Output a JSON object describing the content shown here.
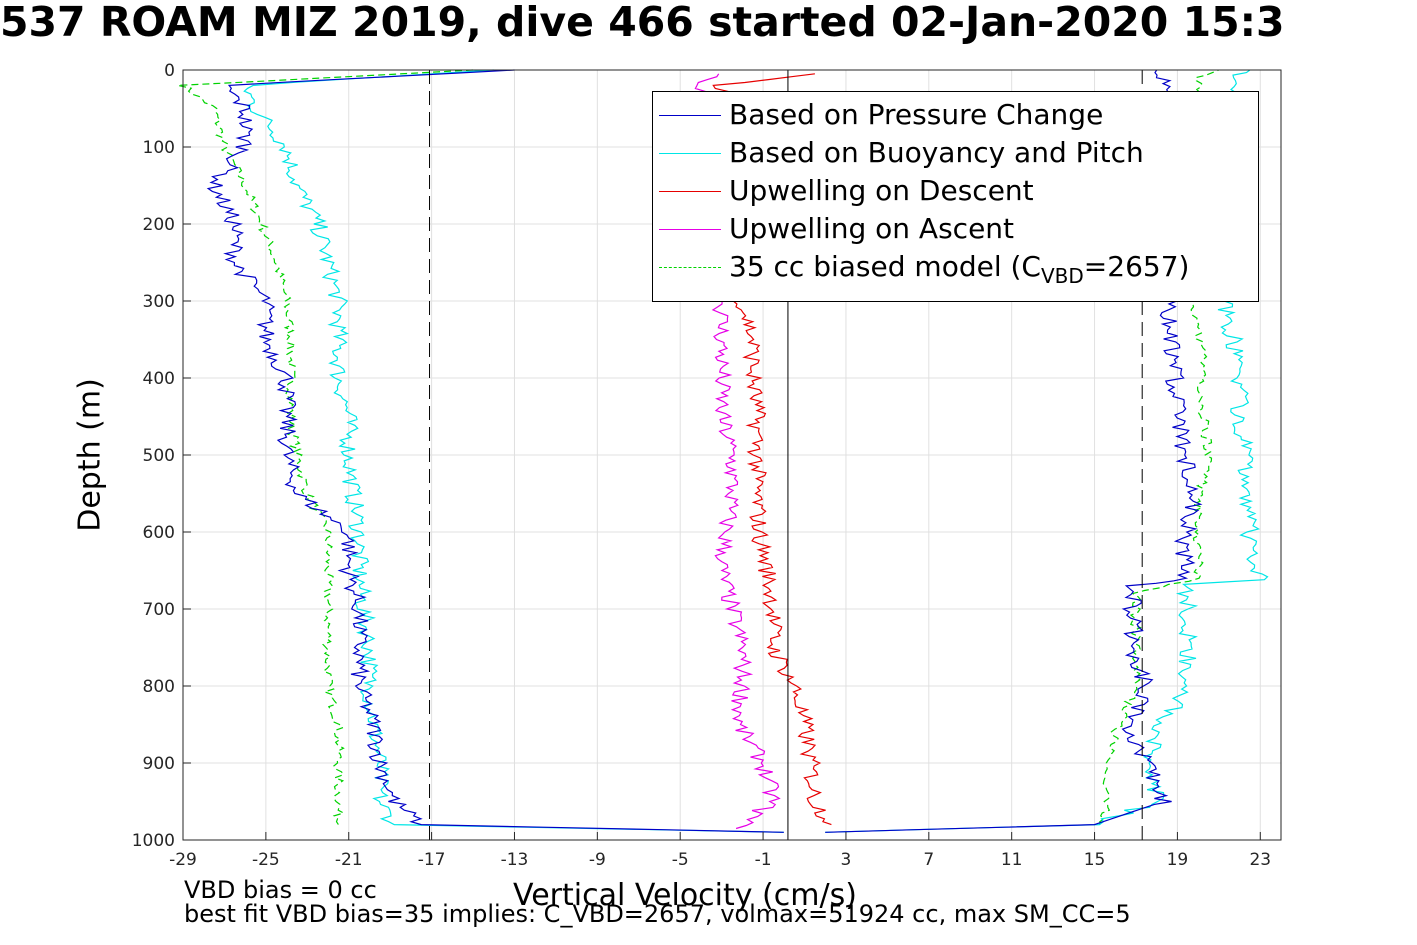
{
  "title": "537 ROAM MIZ 2019, dive 466 started 02-Jan-2020 15:3",
  "footer": {
    "line1": "VBD bias = 0 cc",
    "line2": "best fit VBD bias=35 implies: C_VBD=2657, volmax=51924 cc, max SM_CC=5"
  },
  "legend": {
    "items": [
      {
        "label": "Based on Pressure Change",
        "color": "#0000c8",
        "dash": "solid"
      },
      {
        "label": "Based on Buoyancy and Pitch",
        "color": "#00e6e6",
        "dash": "solid"
      },
      {
        "label": "Upwelling on Descent",
        "color": "#e60000",
        "dash": "solid"
      },
      {
        "label": "Upwelling on Ascent",
        "color": "#e600e6",
        "dash": "solid"
      },
      {
        "label_prefix": "35 cc biased model (C",
        "label_sub": "VBD",
        "label_suffix": "=2657)",
        "color": "#00d200",
        "dash": "dashed"
      }
    ]
  },
  "chart_data": {
    "type": "line",
    "title": "537 ROAM MIZ 2019, dive 466 started 02-Jan-2020 15:3",
    "xlabel": "Vertical Velocity (cm/s)",
    "ylabel": "Depth (m)",
    "xlim": [
      -29,
      24
    ],
    "ylim": [
      0,
      1000
    ],
    "y_reversed": true,
    "grid": true,
    "legend_position": "top-right",
    "xticks": [
      -29,
      -25,
      -21,
      -17,
      -13,
      -9,
      -5,
      -1,
      3,
      7,
      11,
      15,
      19,
      23
    ],
    "yticks": [
      0,
      100,
      200,
      300,
      400,
      500,
      600,
      700,
      800,
      900,
      1000
    ],
    "reference_lines": [
      {
        "x": -17.1,
        "style": "dashed",
        "color": "#000000"
      },
      {
        "x": 17.3,
        "style": "dashed",
        "color": "#000000"
      },
      {
        "x": 0.2,
        "style": "solid",
        "color": "#000000"
      }
    ],
    "series": [
      {
        "name": "Based on Pressure Change",
        "color": "#0000c8",
        "style": "solid",
        "depth": [
          0,
          20,
          50,
          100,
          150,
          200,
          250,
          300,
          350,
          400,
          450,
          500,
          550,
          600,
          650,
          700,
          750,
          800,
          850,
          900,
          950,
          980,
          990
        ],
        "values": [
          -13,
          -27,
          -26,
          -26,
          -27.5,
          -26.5,
          -26.5,
          -25,
          -25,
          -24,
          -24,
          -24,
          -23.5,
          -21,
          -21,
          -20.5,
          -20.5,
          -20.5,
          -19.8,
          -19.5,
          -18.8,
          -17.5,
          0
        ],
        "ascent_depth": [
          990,
          980,
          950,
          900,
          860,
          800,
          760,
          700,
          670,
          660,
          620,
          560,
          500,
          440,
          380,
          330,
          300,
          260,
          200,
          120,
          60,
          10,
          0
        ],
        "ascent_values": [
          2,
          15,
          18.3,
          17.6,
          16.5,
          17.5,
          17,
          16.8,
          16.8,
          19.5,
          19.3,
          19.8,
          19.3,
          19,
          18.8,
          18.5,
          18.8,
          18.8,
          18.8,
          18.8,
          18.5,
          18.3,
          18
        ]
      },
      {
        "name": "Based on Buoyancy and Pitch",
        "color": "#00e6e6",
        "style": "solid",
        "depth": [
          0,
          20,
          50,
          100,
          150,
          200,
          250,
          300,
          350,
          400,
          450,
          500,
          550,
          600,
          650,
          700,
          750,
          800,
          850,
          900,
          950,
          980,
          990
        ],
        "values": [
          -14,
          -26,
          -25.5,
          -24,
          -23.5,
          -22.5,
          -22,
          -21.5,
          -21.5,
          -21.5,
          -21,
          -21,
          -20.8,
          -20.5,
          -20.5,
          -20.3,
          -20,
          -20,
          -19.8,
          -19.5,
          -19.5,
          -18.8,
          0
        ],
        "ascent_depth": [
          990,
          980,
          950,
          900,
          860,
          800,
          760,
          700,
          668,
          662,
          620,
          560,
          500,
          440,
          380,
          330,
          300,
          260,
          200,
          120,
          60,
          10,
          0
        ],
        "ascent_values": [
          2,
          15,
          18,
          17.8,
          18,
          19.5,
          19.5,
          19.5,
          19.3,
          23,
          22.5,
          22.5,
          22.3,
          22,
          22,
          21.5,
          21.3,
          21.3,
          21.3,
          21.3,
          21.3,
          21.5,
          22.5
        ]
      },
      {
        "name": "Upwelling on Descent",
        "color": "#e60000",
        "style": "solid",
        "depth": [
          5,
          20,
          300,
          350,
          400,
          450,
          500,
          550,
          600,
          650,
          700,
          750,
          800,
          850,
          900,
          950,
          980
        ],
        "values": [
          1.5,
          -3,
          -2,
          -1.5,
          -1.5,
          -1.3,
          -1.3,
          -1.3,
          -1.2,
          -0.8,
          -0.5,
          -0.5,
          0.5,
          1,
          1.3,
          1.5,
          2.3
        ]
      },
      {
        "name": "Upwelling on Ascent",
        "color": "#e600e6",
        "style": "solid",
        "depth": [
          5,
          20,
          300,
          350,
          400,
          450,
          500,
          550,
          600,
          650,
          700,
          750,
          800,
          850,
          900,
          950,
          985
        ],
        "values": [
          -3,
          -4,
          -3,
          -3,
          -3,
          -3,
          -2.5,
          -2.5,
          -2.8,
          -3,
          -2.5,
          -2,
          -2,
          -2.2,
          -1,
          -0.5,
          -2.3
        ]
      },
      {
        "name": "35 cc biased model (CVBD=2657)",
        "color": "#00d200",
        "style": "dashed",
        "depth": [
          0,
          20,
          50,
          100,
          150,
          200,
          250,
          300,
          350,
          400,
          450,
          500,
          550,
          600,
          650,
          700,
          750,
          800,
          850,
          900,
          950,
          980
        ],
        "values": [
          -15,
          -29,
          -27.5,
          -27,
          -26,
          -25.2,
          -24.5,
          -24,
          -23.8,
          -23.8,
          -23.8,
          -23.5,
          -23,
          -22,
          -22,
          -22,
          -22,
          -22,
          -21.5,
          -21.5,
          -21.5,
          -21.5
        ],
        "ascent_depth": [
          980,
          950,
          900,
          860,
          800,
          760,
          700,
          680,
          660,
          620,
          560,
          500,
          440,
          380,
          330,
          300,
          260,
          200,
          120,
          60,
          10,
          0
        ],
        "ascent_values": [
          15.5,
          15.5,
          15.5,
          16,
          17,
          17,
          17,
          17,
          20,
          20,
          20,
          20.5,
          20.2,
          20.2,
          20,
          19.8,
          19.8,
          20,
          20,
          20.2,
          20,
          21
        ]
      }
    ]
  }
}
